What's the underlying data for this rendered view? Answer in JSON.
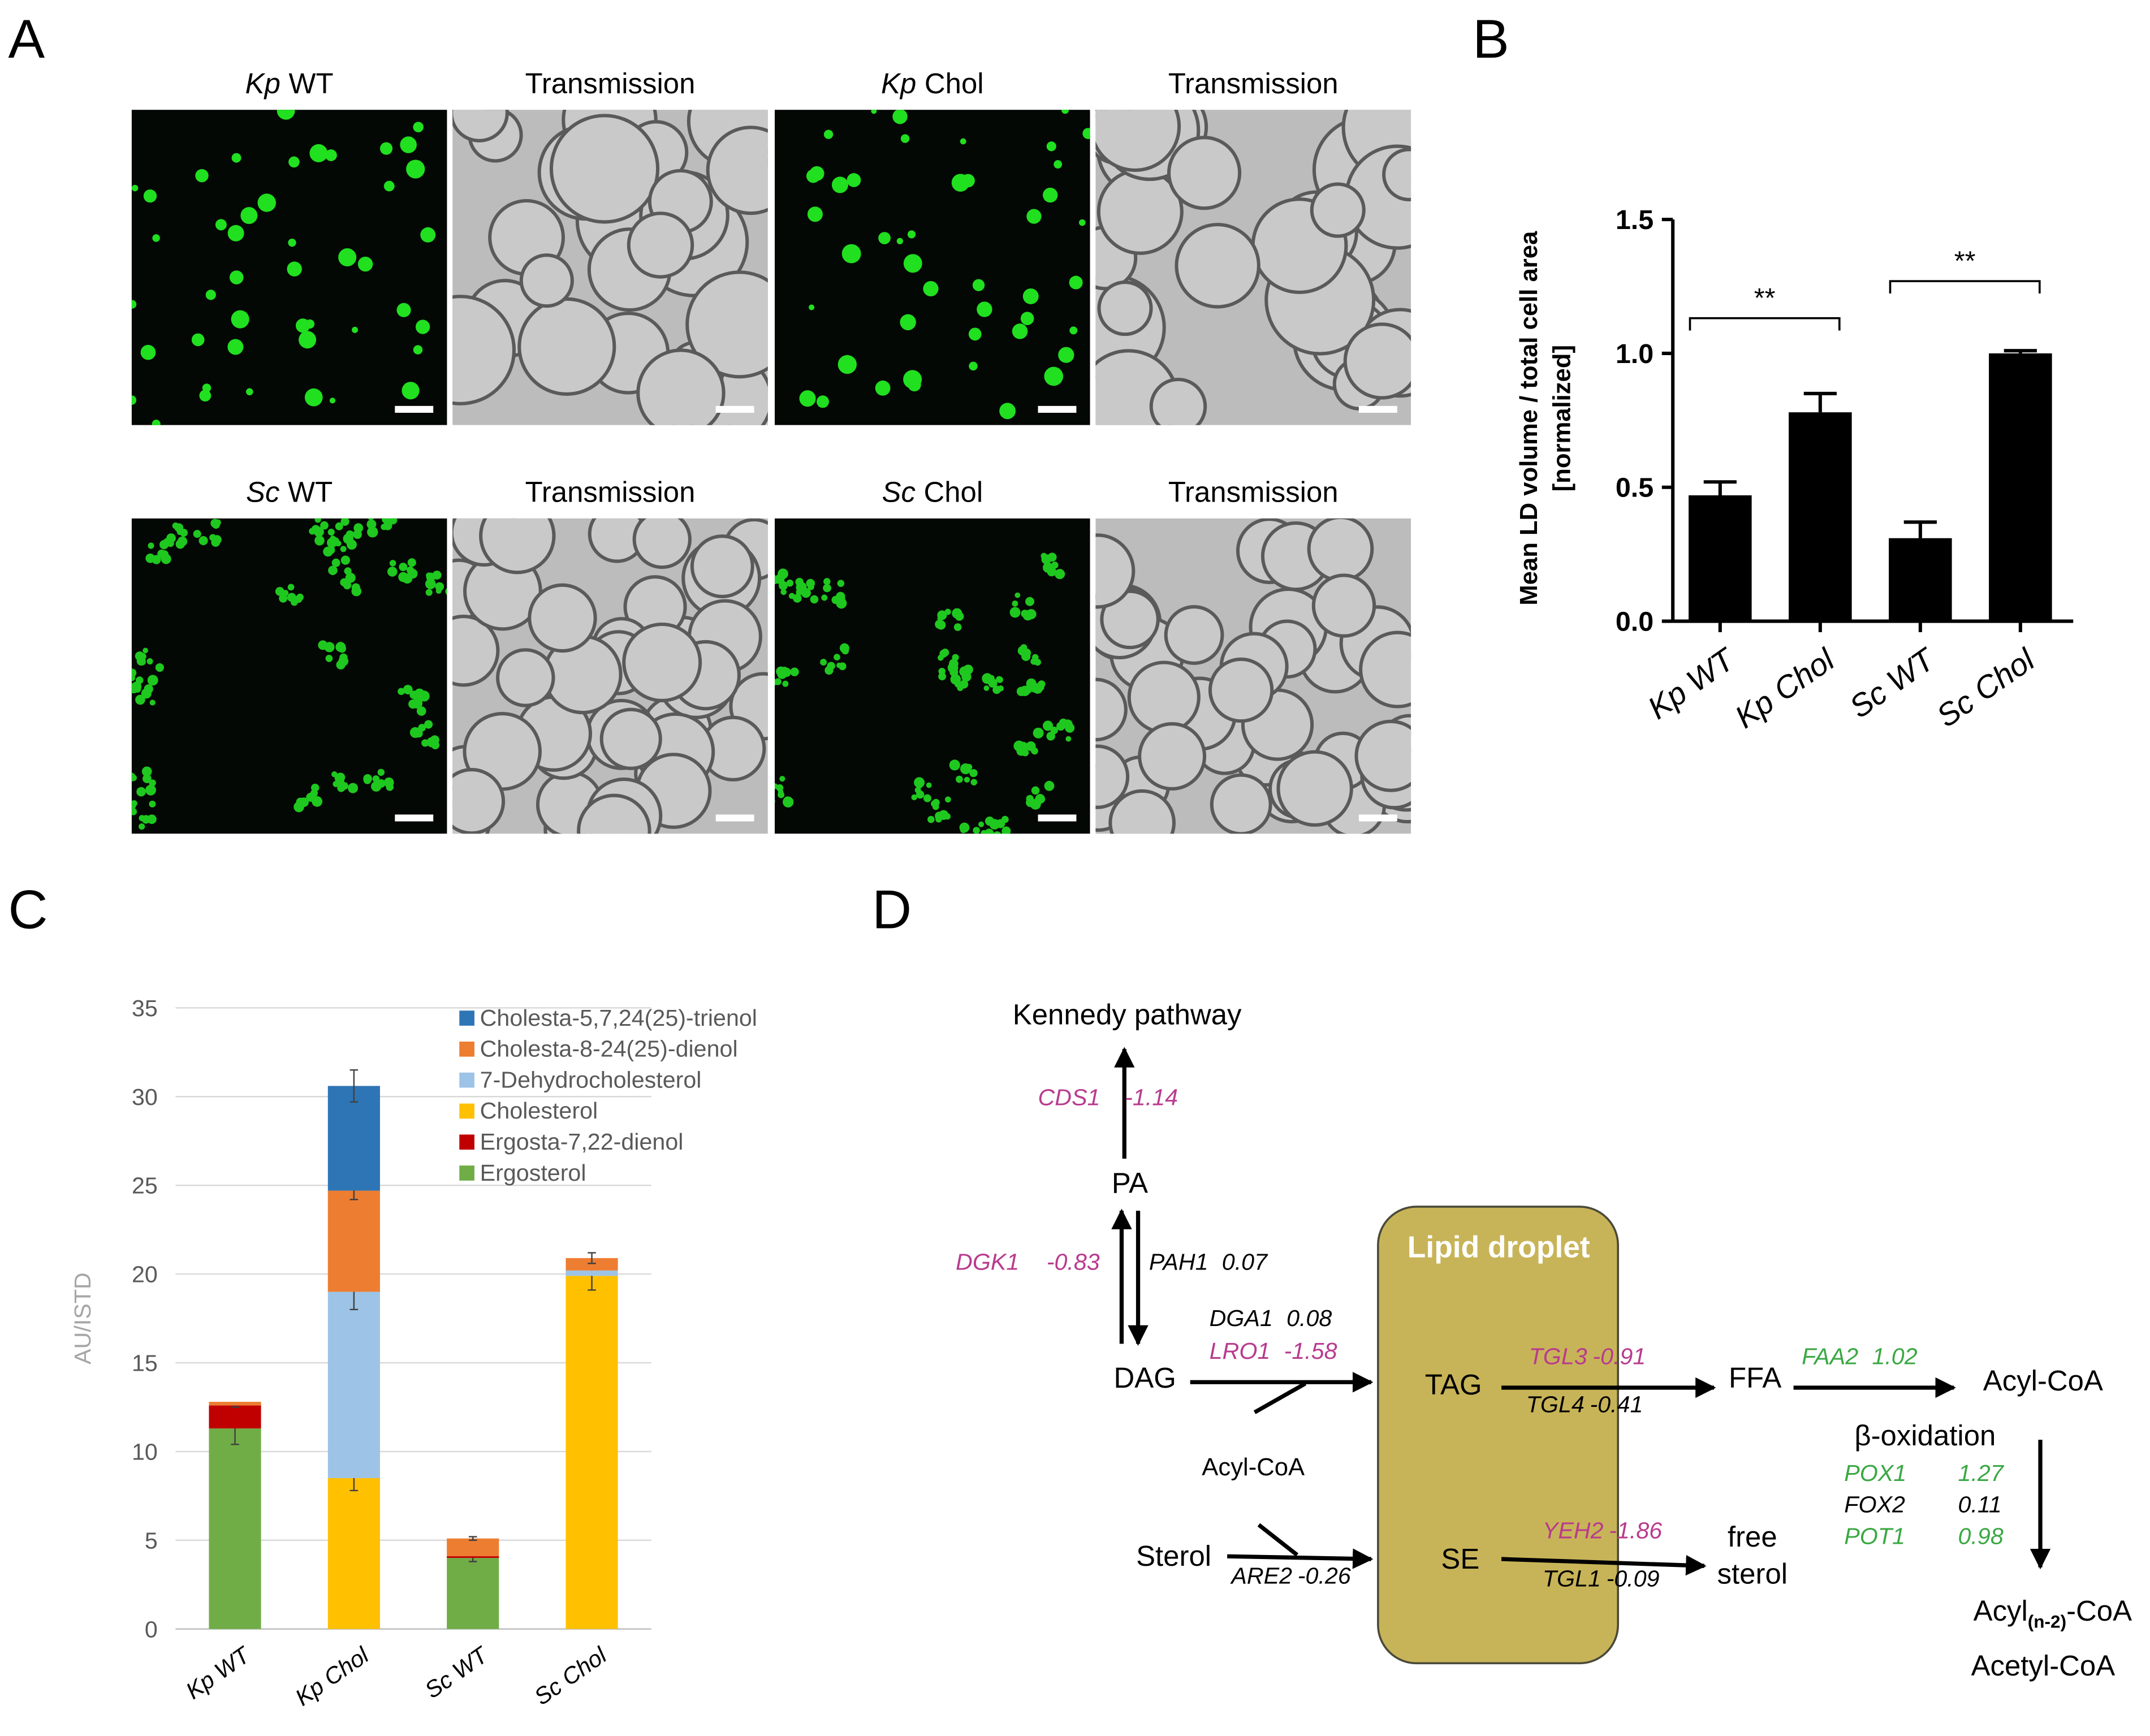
{
  "panel_labels": [
    "A",
    "B",
    "C",
    "D"
  ],
  "panel_a": {
    "images": [
      {
        "italic": "Kp",
        "text": "WT"
      },
      {
        "text": "Transmission"
      },
      {
        "italic": "Kp",
        "text": "Chol"
      },
      {
        "text": "Transmission"
      },
      {
        "italic": "Sc",
        "text": "WT"
      },
      {
        "text": "Transmission"
      },
      {
        "italic": "Sc",
        "text": "Chol"
      },
      {
        "text": "Transmission"
      }
    ]
  },
  "chart_data": [
    {
      "type": "bar",
      "ylabel": [
        "Mean LD volume / total cell area",
        "[normalized]"
      ],
      "categories": [
        "Kp WT",
        "Kp Chol",
        "Sc WT",
        "Sc Chol"
      ],
      "values": [
        0.47,
        0.78,
        0.31,
        1.0
      ],
      "errors": [
        0.05,
        0.07,
        0.06,
        0.01
      ],
      "color": "#000000",
      "ylim": [
        0,
        1.5
      ],
      "yticks": [
        {
          "value": 0,
          "label": "0.0"
        },
        {
          "value": 0.5,
          "label": "0.5"
        },
        {
          "value": 1,
          "label": "1.0"
        },
        {
          "value": 1.5,
          "label": "1.5"
        }
      ],
      "annotations": [
        "**",
        "**"
      ],
      "grid": false
    },
    {
      "type": "stacked_bar",
      "ylabel": "AU/ISTD",
      "categories": [
        "Kp WT",
        "Kp Chol",
        "Sc WT",
        "Sc Chol"
      ],
      "series": [
        {
          "name": "Ergosterol",
          "color": "#70ad47",
          "values": [
            11.3,
            0,
            4.0,
            0
          ],
          "errors": [
            0.9,
            null,
            0.2,
            null
          ]
        },
        {
          "name": "Ergosta-7,22-dienol",
          "color": "#c00000",
          "values": [
            1.3,
            0,
            0.1,
            0
          ],
          "errors": [
            0.1,
            null,
            null,
            null
          ]
        },
        {
          "name": "Cholesterol",
          "color": "#ffc000",
          "values": [
            0,
            8.5,
            0,
            19.9
          ],
          "errors": [
            null,
            0.7,
            null,
            0.8
          ]
        },
        {
          "name": "7-Dehydrocholesterol",
          "color": "#9dc3e6",
          "values": [
            0,
            10.5,
            0,
            0.3
          ],
          "errors": [
            null,
            1.0,
            null,
            null
          ]
        },
        {
          "name": "Cholesta-8-24(25)-dienol",
          "color": "#ed7d31",
          "values": [
            0.2,
            5.7,
            1.0,
            0.7
          ],
          "errors": [
            null,
            0.5,
            0.1,
            0.3
          ]
        },
        {
          "name": "Cholesta-5,7,24(25)-trienol",
          "color": "#2e75b6",
          "values": [
            0,
            5.9,
            0,
            0
          ],
          "errors": [
            null,
            0.9,
            null,
            null
          ]
        }
      ],
      "ylim": [
        0,
        35
      ],
      "yticks": [
        0,
        5,
        10,
        15,
        20,
        25,
        30,
        35
      ],
      "grid": true,
      "legend": "upper right"
    }
  ],
  "diagram": {
    "nodes": {
      "kennedy": "Kennedy pathway",
      "pa": "PA",
      "dag": "DAG",
      "acyl_coa_in": "Acyl-CoA",
      "tag": "TAG",
      "se": "SE",
      "sterol": "Sterol",
      "ffa": "FFA",
      "acyl_coa": "Acyl-CoA",
      "beta_ox": "β-oxidation",
      "free_sterol": [
        "free",
        "sterol"
      ],
      "acyl_n2": [
        "Acyl",
        "(n-2)",
        "-CoA"
      ],
      "acetyl_coa": "Acetyl-CoA",
      "lipid_droplet": "Lipid droplet"
    },
    "genes": [
      {
        "name": "CDS1",
        "value": -1.14,
        "color": "#b83b8e"
      },
      {
        "name": "DGK1",
        "value": -0.83,
        "color": "#b83b8e"
      },
      {
        "name": "PAH1",
        "value": 0.07,
        "color": "#000000"
      },
      {
        "name": "DGA1",
        "value": 0.08,
        "color": "#000000"
      },
      {
        "name": "LRO1",
        "value": -1.58,
        "color": "#b83b8e"
      },
      {
        "name": "TGL3",
        "value": -0.91,
        "color": "#b83b8e"
      },
      {
        "name": "TGL4",
        "value": -0.41,
        "color": "#000000"
      },
      {
        "name": "ARE2",
        "value": -0.26,
        "color": "#000000"
      },
      {
        "name": "YEH2",
        "value": -1.86,
        "color": "#b83b8e"
      },
      {
        "name": "TGL1",
        "value": -0.09,
        "color": "#000000"
      },
      {
        "name": "FAA2",
        "value": 1.02,
        "color": "#3aa843"
      },
      {
        "name": "POX1",
        "value": 1.27,
        "color": "#3aa843"
      },
      {
        "name": "FOX2",
        "value": 0.11,
        "color": "#000000"
      },
      {
        "name": "POT1",
        "value": 0.98,
        "color": "#3aa843"
      }
    ]
  }
}
